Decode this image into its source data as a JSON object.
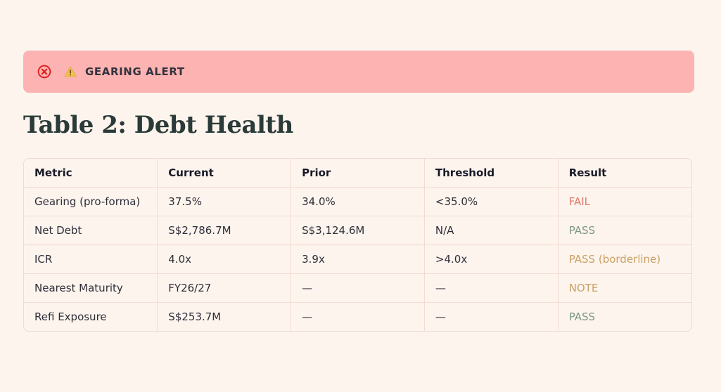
{
  "page": {
    "background": "#fdf4ee"
  },
  "alert": {
    "label": "GEARING ALERT",
    "background": "#fcb3b1",
    "dismiss_icon": "circled-x-icon",
    "warning_icon": "warning-triangle-icon"
  },
  "title": "Table 2: Debt Health",
  "table": {
    "columns": [
      "Metric",
      "Current",
      "Prior",
      "Threshold",
      "Result"
    ],
    "rows": [
      {
        "metric": "Gearing (pro-forma)",
        "current": "37.5%",
        "prior": "34.0%",
        "threshold": "<35.0%",
        "result": "FAIL",
        "status": "fail"
      },
      {
        "metric": "Net Debt",
        "current": "S$2,786.7M",
        "prior": "S$3,124.6M",
        "threshold": "N/A",
        "result": "PASS",
        "status": "pass"
      },
      {
        "metric": "ICR",
        "current": "4.0x",
        "prior": "3.9x",
        "threshold": ">4.0x",
        "result": "PASS (borderline)",
        "status": "warn"
      },
      {
        "metric": "Nearest Maturity",
        "current": "FY26/27",
        "prior": "—",
        "threshold": "—",
        "result": "NOTE",
        "status": "warn"
      },
      {
        "metric": "Refi Exposure",
        "current": "S$253.7M",
        "prior": "—",
        "threshold": "—",
        "result": "PASS",
        "status": "pass"
      }
    ]
  },
  "colors": {
    "fail": "#e07a6a",
    "pass": "#7d9884",
    "warn": "#c9a164",
    "alert_icon_red": "#e11d1d",
    "warning_gold": "#f2c14b"
  }
}
